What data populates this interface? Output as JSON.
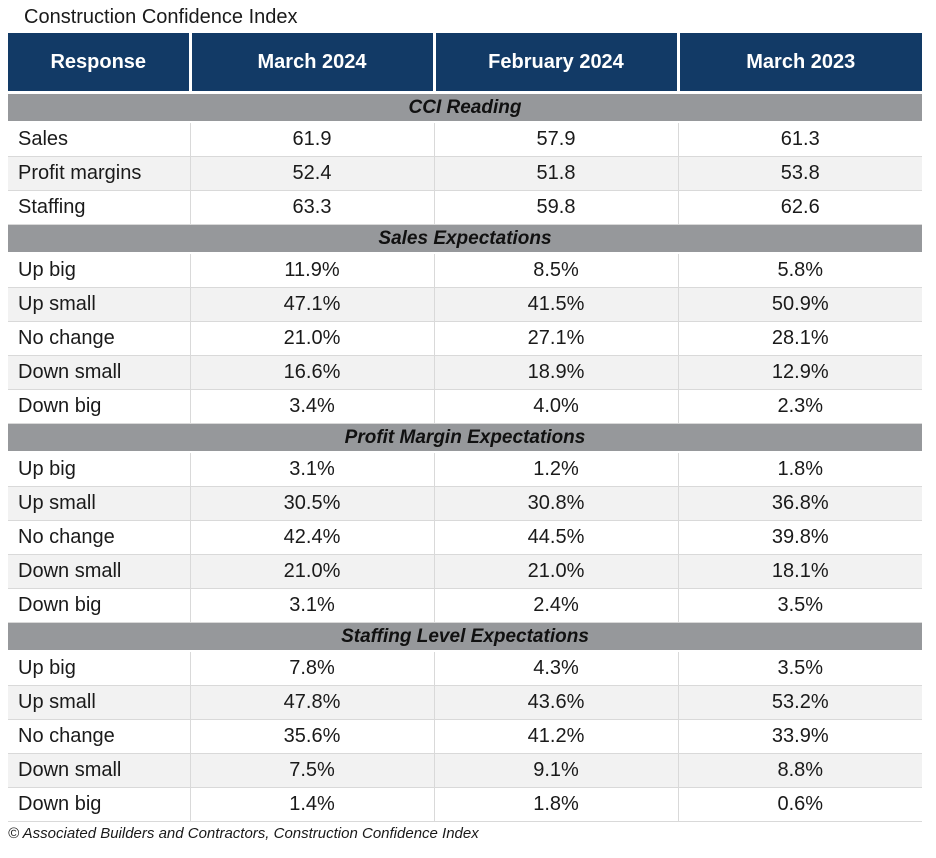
{
  "chart_data": {
    "type": "table",
    "title": "Construction Confidence Index",
    "footnote": "© Associated Builders and Contractors, Construction Confidence Index",
    "columns": [
      "Response",
      "March 2024",
      "February 2024",
      "March 2023"
    ],
    "sections": [
      {
        "label": "CCI Reading",
        "rows": [
          {
            "response": "Sales",
            "values": [
              "61.9",
              "57.9",
              "61.3"
            ]
          },
          {
            "response": "Profit margins",
            "values": [
              "52.4",
              "51.8",
              "53.8"
            ]
          },
          {
            "response": "Staffing",
            "values": [
              "63.3",
              "59.8",
              "62.6"
            ]
          }
        ]
      },
      {
        "label": "Sales Expectations",
        "rows": [
          {
            "response": "Up big",
            "values": [
              "11.9%",
              "8.5%",
              "5.8%"
            ]
          },
          {
            "response": "Up small",
            "values": [
              "47.1%",
              "41.5%",
              "50.9%"
            ]
          },
          {
            "response": "No change",
            "values": [
              "21.0%",
              "27.1%",
              "28.1%"
            ]
          },
          {
            "response": "Down small",
            "values": [
              "16.6%",
              "18.9%",
              "12.9%"
            ]
          },
          {
            "response": "Down big",
            "values": [
              "3.4%",
              "4.0%",
              "2.3%"
            ]
          }
        ]
      },
      {
        "label": "Profit Margin Expectations",
        "rows": [
          {
            "response": "Up big",
            "values": [
              "3.1%",
              "1.2%",
              "1.8%"
            ]
          },
          {
            "response": "Up small",
            "values": [
              "30.5%",
              "30.8%",
              "36.8%"
            ]
          },
          {
            "response": "No change",
            "values": [
              "42.4%",
              "44.5%",
              "39.8%"
            ]
          },
          {
            "response": "Down small",
            "values": [
              "21.0%",
              "21.0%",
              "18.1%"
            ]
          },
          {
            "response": "Down big",
            "values": [
              "3.1%",
              "2.4%",
              "3.5%"
            ]
          }
        ]
      },
      {
        "label": "Staffing Level Expectations",
        "rows": [
          {
            "response": "Up big",
            "values": [
              "7.8%",
              "4.3%",
              "3.5%"
            ]
          },
          {
            "response": "Up small",
            "values": [
              "47.8%",
              "43.6%",
              "53.2%"
            ]
          },
          {
            "response": "No change",
            "values": [
              "35.6%",
              "41.2%",
              "33.9%"
            ]
          },
          {
            "response": "Down small",
            "values": [
              "7.5%",
              "9.1%",
              "8.8%"
            ]
          },
          {
            "response": "Down big",
            "values": [
              "1.4%",
              "1.8%",
              "0.6%"
            ]
          }
        ]
      }
    ],
    "colors": {
      "header_bg": "#123a66",
      "header_text": "#ffffff",
      "section_bg": "#96989b",
      "row_bg": "#ffffff",
      "row_alt_bg": "#f2f2f2",
      "border": "#d9d9d9",
      "text": "#1a1a1a"
    }
  }
}
